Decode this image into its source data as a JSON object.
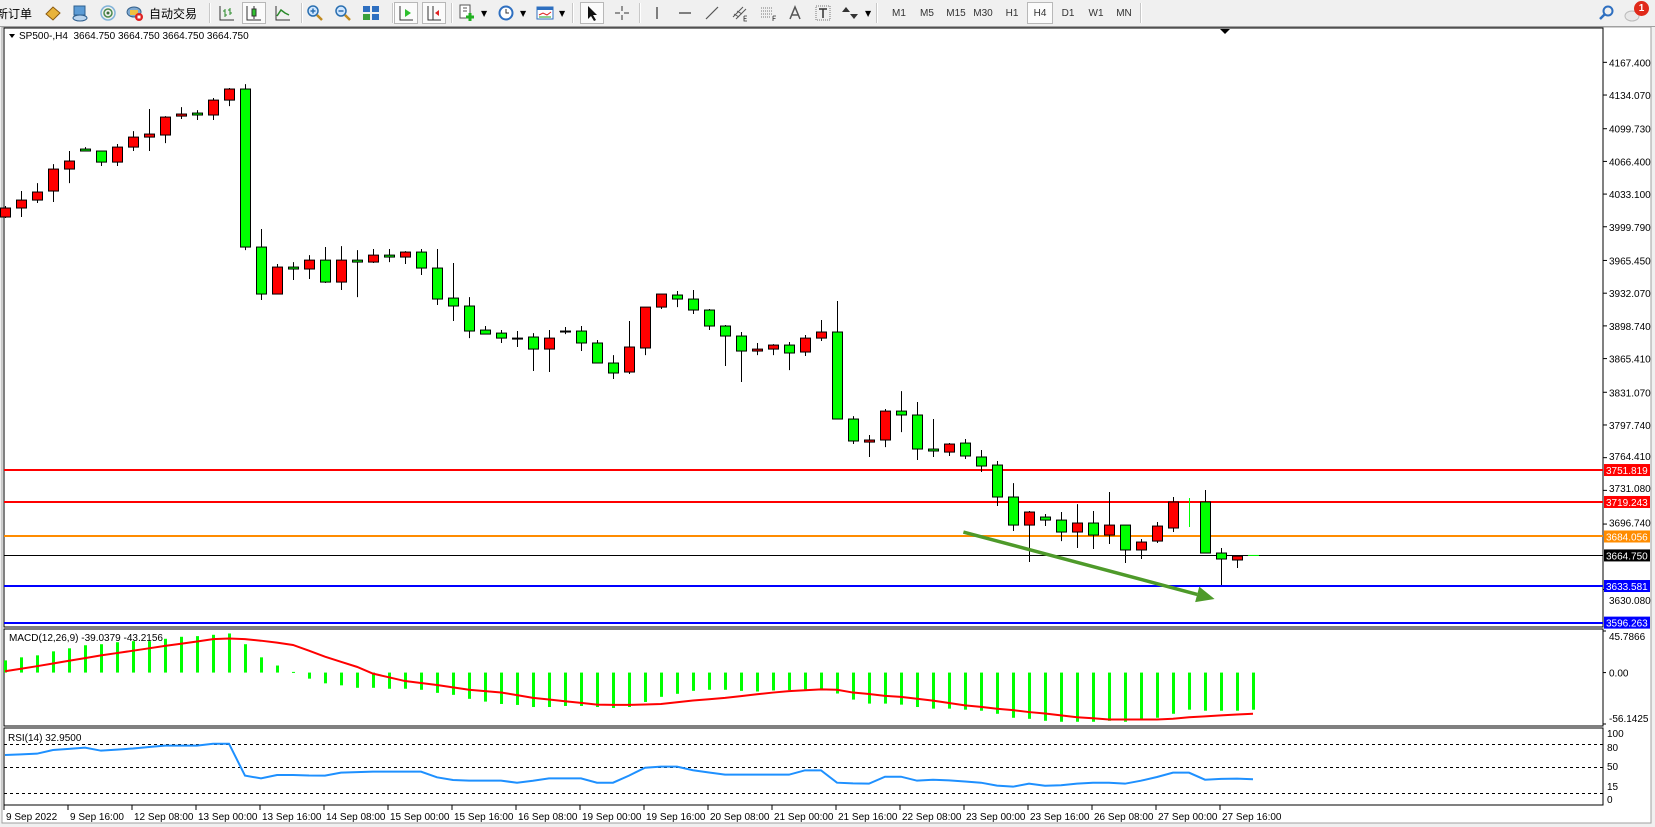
{
  "toolbar": {
    "new_order": "新订单",
    "auto_trading": "自动交易",
    "timeframes": [
      "M1",
      "M5",
      "M15",
      "M30",
      "H1",
      "H4",
      "D1",
      "W1",
      "MN"
    ],
    "active_timeframe": "H4",
    "notification_count": "1"
  },
  "chart_data": {
    "type": "candlestick",
    "header": "SP500-,H4  3664.750 3664.750 3664.750 3664.750",
    "colors": {
      "bull": "#ff0000",
      "bear": "#00ff00",
      "background": "#ffffff"
    },
    "price_range": [
      3591.8,
      4202.4
    ],
    "price_axis": {
      "ticks": [
        "4167.400",
        "4134.070",
        "4099.730",
        "4066.400",
        "4033.100",
        "3999.790",
        "3965.450",
        "3932.070",
        "3898.740",
        "3865.410",
        "3831.070",
        "3797.740",
        "3764.410",
        "3731.080",
        "3696.740",
        "3630.080"
      ]
    },
    "horizontal_lines": [
      {
        "price": "3751.819",
        "color": "#ff0000"
      },
      {
        "price": "3719.243",
        "color": "#ff0000"
      },
      {
        "price": "3684.056",
        "color": "#ff8c00"
      },
      {
        "price": "3633.581",
        "color": "#0000ff"
      },
      {
        "price": "3596.263",
        "color": "#0000ff"
      }
    ],
    "current_price": {
      "price": "3664.750",
      "color": "#000000"
    },
    "time_axis": [
      "9 Sep 2022",
      "9 Sep 16:00",
      "12 Sep 08:00",
      "13 Sep 00:00",
      "13 Sep 16:00",
      "14 Sep 08:00",
      "15 Sep 00:00",
      "15 Sep 16:00",
      "16 Sep 08:00",
      "19 Sep 00:00",
      "19 Sep 16:00",
      "20 Sep 08:00",
      "21 Sep 00:00",
      "21 Sep 16:00",
      "22 Sep 08:00",
      "23 Sep 00:00",
      "23 Sep 16:00",
      "26 Sep 08:00",
      "27 Sep 00:00",
      "27 Sep 16:00"
    ],
    "candles_ohlc": [
      [
        4009.7,
        4020.9,
        4008.7,
        4018.9
      ],
      [
        4018.9,
        4036.2,
        4009.7,
        4027.0
      ],
      [
        4027.0,
        4044.3,
        4024.0,
        4035.2
      ],
      [
        4036.2,
        4063.7,
        4025.0,
        4058.6
      ],
      [
        4058.6,
        4077.0,
        4044.3,
        4066.8
      ],
      [
        4079.0,
        4081.0,
        4077.0,
        4077.0
      ],
      [
        4077.0,
        4077.0,
        4061.7,
        4065.7
      ],
      [
        4065.7,
        4084.1,
        4061.7,
        4081.0
      ],
      [
        4081.0,
        4097.3,
        4077.0,
        4091.2
      ],
      [
        4091.2,
        4119.8,
        4077.0,
        4094.3
      ],
      [
        4093.3,
        4112.6,
        4085.1,
        4111.6
      ],
      [
        4112.6,
        4121.8,
        4109.6,
        4114.7
      ],
      [
        4115.7,
        4118.7,
        4108.6,
        4113.7
      ],
      [
        4113.7,
        4131.0,
        4108.6,
        4128.9
      ],
      [
        4128.9,
        4141.2,
        4122.8,
        4140.2
      ],
      [
        4140.2,
        4145.2,
        3976.0,
        3979.1
      ],
      [
        3979.1,
        3997.5,
        3925.1,
        3931.2
      ],
      [
        3931.2,
        3961.8,
        3931.2,
        3958.7
      ],
      [
        3958.7,
        3963.8,
        3945.5,
        3956.7
      ],
      [
        3956.7,
        3970.9,
        3946.5,
        3965.8
      ],
      [
        3965.8,
        3979.1,
        3942.4,
        3943.4
      ],
      [
        3943.4,
        3980.1,
        3935.3,
        3965.8
      ],
      [
        3965.8,
        3976.0,
        3928.1,
        3963.8
      ],
      [
        3963.8,
        3977.1,
        3962.8,
        3970.9
      ],
      [
        3970.9,
        3977.1,
        3963.8,
        3968.9
      ],
      [
        3968.9,
        3975.0,
        3961.8,
        3974.0
      ],
      [
        3974.0,
        3977.1,
        3950.6,
        3957.7
      ],
      [
        3957.7,
        3977.1,
        3920.0,
        3926.1
      ],
      [
        3927.1,
        3962.8,
        3903.7,
        3919.0
      ],
      [
        3919.0,
        3928.1,
        3886.3,
        3893.5
      ],
      [
        3894.5,
        3898.6,
        3890.4,
        3890.4
      ],
      [
        3891.4,
        3894.5,
        3881.3,
        3886.3
      ],
      [
        3886.3,
        3893.5,
        3877.2,
        3885.8
      ],
      [
        3887.4,
        3891.4,
        3852.7,
        3875.1
      ],
      [
        3875.1,
        3894.5,
        3851.7,
        3886.3
      ],
      [
        3893.5,
        3897.6,
        3890.4,
        3893.3
      ],
      [
        3893.5,
        3898.6,
        3873.1,
        3881.3
      ],
      [
        3881.3,
        3884.3,
        3860.9,
        3860.9
      ],
      [
        3860.9,
        3869.0,
        3844.6,
        3850.7
      ],
      [
        3851.7,
        3903.7,
        3849.7,
        3877.2
      ],
      [
        3876.2,
        3917.9,
        3869.0,
        3917.9
      ],
      [
        3917.9,
        3931.2,
        3915.9,
        3931.2
      ],
      [
        3930.2,
        3934.3,
        3917.9,
        3926.1
      ],
      [
        3926.1,
        3935.3,
        3910.8,
        3914.9
      ],
      [
        3914.9,
        3915.9,
        3894.5,
        3898.6
      ],
      [
        3898.6,
        3899.6,
        3857.8,
        3888.4
      ],
      [
        3888.4,
        3892.5,
        3841.5,
        3873.1
      ],
      [
        3873.1,
        3881.3,
        3869.0,
        3875.1
      ],
      [
        3875.1,
        3880.2,
        3869.0,
        3879.2
      ],
      [
        3879.2,
        3882.3,
        3853.7,
        3871.1
      ],
      [
        3872.1,
        3889.4,
        3868.0,
        3886.3
      ],
      [
        3886.3,
        3904.7,
        3883.3,
        3892.5
      ],
      [
        3892.5,
        3924.1,
        3803.8,
        3803.8
      ],
      [
        3803.8,
        3806.8,
        3778.3,
        3781.4
      ],
      [
        3780.3,
        3787.5,
        3765.1,
        3782.4
      ],
      [
        3782.4,
        3814.0,
        3775.2,
        3811.9
      ],
      [
        3811.9,
        3832.3,
        3790.5,
        3807.9
      ],
      [
        3807.9,
        3821.1,
        3762.0,
        3773.2
      ],
      [
        3773.2,
        3803.8,
        3765.1,
        3771.2
      ],
      [
        3770.1,
        3779.3,
        3766.1,
        3778.3
      ],
      [
        3779.3,
        3783.4,
        3763.0,
        3766.1
      ],
      [
        3765.1,
        3772.2,
        3749.8,
        3755.9
      ],
      [
        3756.9,
        3761.0,
        3715.1,
        3724.3
      ],
      [
        3724.3,
        3738.5,
        3689.6,
        3695.7
      ],
      [
        3695.7,
        3710.0,
        3658.0,
        3709.0
      ],
      [
        3703.9,
        3707.0,
        3694.7,
        3700.8
      ],
      [
        3700.8,
        3709.0,
        3679.4,
        3688.6
      ],
      [
        3688.6,
        3717.1,
        3672.3,
        3697.8
      ],
      [
        3697.8,
        3710.0,
        3671.3,
        3685.5
      ],
      [
        3685.5,
        3729.4,
        3676.4,
        3695.7
      ],
      [
        3695.7,
        3695.7,
        3657.0,
        3670.3
      ],
      [
        3670.3,
        3681.5,
        3661.1,
        3678.4
      ],
      [
        3679.4,
        3698.8,
        3677.4,
        3694.7
      ],
      [
        3692.7,
        3724.3,
        3688.6,
        3719.2
      ],
      [
        3723.3,
        3723.3,
        3693.7,
        3693.7
      ],
      [
        3719.2,
        3731.4,
        3667.2,
        3667.2
      ],
      [
        3667.2,
        3672.3,
        3634.6,
        3661.1
      ],
      [
        3660.1,
        3665.2,
        3651.9,
        3664.1
      ],
      [
        3664.75,
        3664.75,
        3664.75,
        3664.75
      ]
    ],
    "line_only_bars": [
      74
    ],
    "trend_arrow": {
      "color": "#4e9a2a",
      "from": {
        "bar": 59.9,
        "price": 3688.6
      },
      "to": {
        "bar": 75.6,
        "price": 3620.3
      }
    },
    "macd": {
      "label": "MACD(12,26,9) -39.0379 -43.2156",
      "range": [
        -56.1425,
        45.7866
      ],
      "axis_labels": [
        "45.7866",
        "0.00",
        "-56.1425"
      ],
      "histogram_color": "#00ff00",
      "signal_color": "#ff0000",
      "histogram": [
        12.8,
        16.0,
        18.1,
        22.3,
        25.5,
        28.7,
        29.8,
        31.9,
        33.0,
        33.0,
        35.5,
        37.6,
        38.3,
        39.7,
        41.1,
        29.8,
        16.0,
        7.4,
        0.7,
        -6.4,
        -11.3,
        -13.4,
        -16.0,
        -16.0,
        -17.0,
        -17.0,
        -18.1,
        -21.3,
        -23.4,
        -27.6,
        -30.5,
        -33.0,
        -34.0,
        -36.2,
        -36.2,
        -35.1,
        -35.1,
        -36.2,
        -37.2,
        -36.2,
        -30.9,
        -25.5,
        -22.3,
        -19.2,
        -18.1,
        -18.1,
        -19.2,
        -19.9,
        -18.8,
        -18.4,
        -17.7,
        -17.7,
        -22.0,
        -28.4,
        -32.6,
        -32.6,
        -33.7,
        -36.2,
        -37.9,
        -37.9,
        -39.0,
        -40.1,
        -43.3,
        -47.5,
        -48.6,
        -50.7,
        -51.7,
        -51.7,
        -51.7,
        -50.7,
        -51.7,
        -49.6,
        -47.5,
        -43.3,
        -39.0,
        -40.1,
        -40.1,
        -40.1,
        -39.04
      ],
      "signal": [
        1.4,
        4.0,
        6.7,
        9.5,
        12.4,
        15.2,
        18.1,
        20.5,
        23.0,
        25.5,
        28.0,
        30.3,
        32.6,
        35.1,
        35.8,
        35.1,
        33.5,
        31.5,
        29.0,
        23.0,
        16.7,
        11.3,
        6.0,
        -1.1,
        -5.0,
        -8.9,
        -11.0,
        -13.1,
        -15.6,
        -18.1,
        -19.5,
        -20.9,
        -23.7,
        -26.6,
        -28.3,
        -30.1,
        -31.9,
        -33.7,
        -33.9,
        -34.0,
        -33.5,
        -33.0,
        -31.2,
        -29.4,
        -28.0,
        -26.6,
        -24.8,
        -22.8,
        -21.0,
        -19.5,
        -18.6,
        -17.7,
        -18.1,
        -21.0,
        -22.5,
        -24.5,
        -25.5,
        -27.5,
        -29.5,
        -32.0,
        -34.5,
        -36.0,
        -38.0,
        -39.5,
        -41.5,
        -43.0,
        -45.0,
        -47.0,
        -48.0,
        -49.3,
        -49.3,
        -49.3,
        -49.3,
        -48.5,
        -47.0,
        -46.0,
        -45.0,
        -44.0,
        -43.2156
      ]
    },
    "rsi": {
      "label": "RSI(14) 32.9500",
      "range": [
        0,
        100
      ],
      "levels": [
        80,
        50,
        15
      ],
      "axis_labels": [
        "100",
        "80",
        "50",
        "15",
        "0"
      ],
      "line_color": "#1e90ff",
      "values": [
        65.3,
        66.2,
        67.1,
        72.0,
        73.5,
        75.1,
        71.1,
        72.5,
        74.0,
        76.0,
        77.8,
        77.8,
        77.8,
        80.4,
        80.4,
        37.8,
        34.2,
        38.7,
        38.7,
        38.0,
        37.8,
        41.8,
        42.5,
        43.1,
        43.1,
        43.1,
        43.1,
        35.6,
        32.0,
        31.1,
        31.1,
        31.1,
        28.4,
        31.0,
        34.2,
        34.2,
        34.2,
        28.4,
        28.4,
        37.8,
        48.4,
        49.8,
        49.8,
        45.0,
        42.0,
        39.1,
        39.1,
        39.1,
        39.1,
        39.1,
        44.9,
        44.9,
        28.4,
        27.5,
        27.1,
        36.4,
        36.4,
        31.1,
        32.4,
        31.5,
        30.0,
        28.4,
        24.5,
        23.1,
        27.1,
        24.4,
        25.0,
        27.1,
        28.4,
        28.4,
        27.1,
        31.1,
        36.0,
        41.8,
        41.8,
        32.4,
        33.5,
        33.8,
        32.95
      ]
    }
  }
}
